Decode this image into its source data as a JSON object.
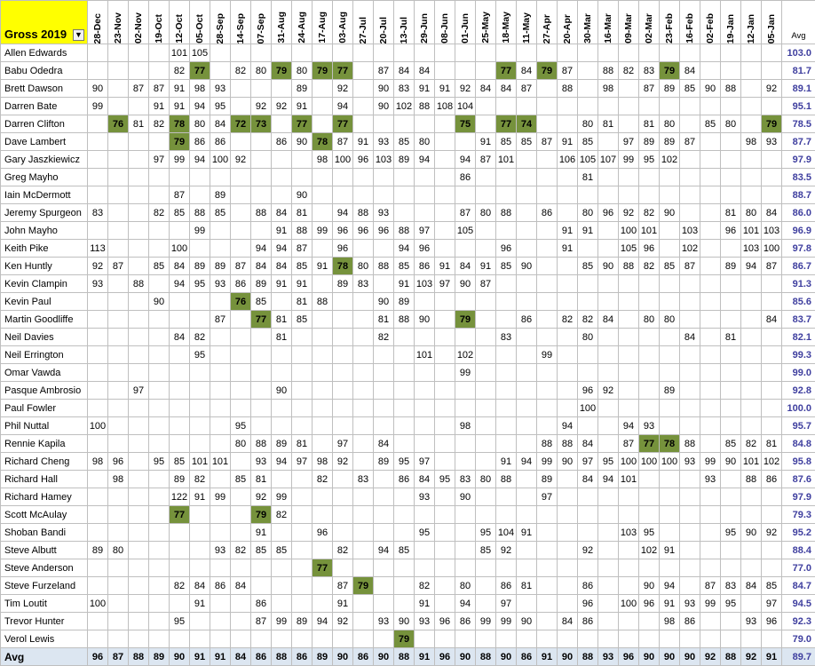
{
  "title": "Gross 2019",
  "filter_icon": "filter-icon",
  "avg_label": "Avg",
  "highlight_color": "#76923c",
  "dates": [
    "28-Dec",
    "23-Nov",
    "02-Nov",
    "19-Oct",
    "12-Oct",
    "05-Oct",
    "28-Sep",
    "14-Sep",
    "07-Sep",
    "31-Aug",
    "24-Aug",
    "17-Aug",
    "03-Aug",
    "27-Jul",
    "20-Jul",
    "13-Jul",
    "29-Jun",
    "08-Jun",
    "01-Jun",
    "25-May",
    "18-May",
    "11-May",
    "27-Apr",
    "20-Apr",
    "30-Mar",
    "16-Mar",
    "09-Mar",
    "02-Mar",
    "23-Feb",
    "16-Feb",
    "02-Feb",
    "19-Jan",
    "12-Jan",
    "05-Jan"
  ],
  "players": [
    {
      "name": "Allen Edwards",
      "avg": "103.0",
      "s": [
        "",
        "",
        "",
        "",
        "101",
        "105",
        "",
        "",
        "",
        "",
        "",
        "",
        "",
        "",
        "",
        "",
        "",
        "",
        "",
        "",
        "",
        "",
        "",
        "",
        "",
        "",
        "",
        "",
        "",
        "",
        "",
        "",
        "",
        ""
      ],
      "h": []
    },
    {
      "name": "Babu Odedra",
      "avg": "81.7",
      "s": [
        "",
        "",
        "",
        "",
        "82",
        "77",
        "",
        "82",
        "80",
        "79",
        "80",
        "79",
        "77",
        "",
        "87",
        "84",
        "84",
        "",
        "",
        "",
        "77",
        "84",
        "79",
        "87",
        "",
        "88",
        "82",
        "83",
        "79",
        "84",
        "",
        "",
        "",
        ""
      ],
      "h": [
        5,
        9,
        11,
        12,
        20,
        22,
        28
      ]
    },
    {
      "name": "Brett Dawson",
      "avg": "89.1",
      "s": [
        "90",
        "",
        "87",
        "87",
        "91",
        "98",
        "93",
        "",
        "",
        "",
        "89",
        "",
        "92",
        "",
        "90",
        "83",
        "91",
        "91",
        "92",
        "84",
        "84",
        "87",
        "",
        "88",
        "",
        "98",
        "",
        "87",
        "89",
        "85",
        "90",
        "88",
        "",
        "92"
      ],
      "h": []
    },
    {
      "name": "Darren Bate",
      "avg": "95.1",
      "s": [
        "99",
        "",
        "",
        "91",
        "91",
        "94",
        "95",
        "",
        "92",
        "92",
        "91",
        "",
        "94",
        "",
        "90",
        "102",
        "88",
        "108",
        "104",
        "",
        "",
        "",
        "",
        "",
        "",
        "",
        "",
        "",
        "",
        "",
        "",
        "",
        "",
        ""
      ],
      "h": []
    },
    {
      "name": "Darren Clifton",
      "avg": "78.5",
      "s": [
        "",
        "76",
        "81",
        "82",
        "78",
        "80",
        "84",
        "72",
        "73",
        "",
        "77",
        "",
        "77",
        "",
        "",
        "",
        "",
        "",
        "75",
        "",
        "77",
        "74",
        "",
        "",
        "80",
        "81",
        "",
        "81",
        "80",
        "",
        "85",
        "80",
        "",
        "79"
      ],
      "h": [
        1,
        4,
        7,
        8,
        10,
        12,
        18,
        20,
        21,
        33
      ]
    },
    {
      "name": "Dave Lambert",
      "avg": "87.7",
      "s": [
        "",
        "",
        "",
        "",
        "79",
        "86",
        "86",
        "",
        "",
        "86",
        "90",
        "78",
        "87",
        "91",
        "93",
        "85",
        "80",
        "",
        "",
        "91",
        "85",
        "85",
        "87",
        "91",
        "85",
        "",
        "97",
        "89",
        "89",
        "87",
        "",
        "",
        "98",
        "93"
      ],
      "h": [
        4,
        11
      ]
    },
    {
      "name": "Gary Jaszkiewicz",
      "avg": "97.9",
      "s": [
        "",
        "",
        "",
        "97",
        "99",
        "94",
        "100",
        "92",
        "",
        "",
        "",
        "98",
        "100",
        "96",
        "103",
        "89",
        "94",
        "",
        "94",
        "87",
        "101",
        "",
        "",
        "106",
        "105",
        "107",
        "99",
        "95",
        "102",
        "",
        "",
        "",
        "",
        ""
      ],
      "h": []
    },
    {
      "name": "Greg Mayho",
      "avg": "83.5",
      "s": [
        "",
        "",
        "",
        "",
        "",
        "",
        "",
        "",
        "",
        "",
        "",
        "",
        "",
        "",
        "",
        "",
        "",
        "",
        "86",
        "",
        "",
        "",
        "",
        "",
        "81",
        "",
        "",
        "",
        "",
        "",
        "",
        "",
        "",
        ""
      ],
      "h": []
    },
    {
      "name": "Iain McDermott",
      "avg": "88.7",
      "s": [
        "",
        "",
        "",
        "",
        "87",
        "",
        "89",
        "",
        "",
        "",
        "90",
        "",
        "",
        "",
        "",
        "",
        "",
        "",
        "",
        "",
        "",
        "",
        "",
        "",
        "",
        "",
        "",
        "",
        "",
        "",
        "",
        "",
        "",
        ""
      ],
      "h": []
    },
    {
      "name": "Jeremy Spurgeon",
      "avg": "86.0",
      "s": [
        "83",
        "",
        "",
        "82",
        "85",
        "88",
        "85",
        "",
        "88",
        "84",
        "81",
        "",
        "94",
        "88",
        "93",
        "",
        "",
        "",
        "87",
        "80",
        "88",
        "",
        "86",
        "",
        "80",
        "96",
        "92",
        "82",
        "90",
        "",
        "",
        "81",
        "80",
        "84"
      ],
      "h": []
    },
    {
      "name": "John Mayho",
      "avg": "96.9",
      "s": [
        "",
        "",
        "",
        "",
        "",
        "99",
        "",
        "",
        "",
        "91",
        "88",
        "99",
        "96",
        "96",
        "96",
        "88",
        "97",
        "",
        "105",
        "",
        "",
        "",
        "",
        "91",
        "91",
        "",
        "100",
        "101",
        "",
        "103",
        "",
        "96",
        "101",
        "103"
      ],
      "h": []
    },
    {
      "name": "Keith Pike",
      "avg": "97.8",
      "s": [
        "113",
        "",
        "",
        "",
        "100",
        "",
        "",
        "",
        "94",
        "94",
        "87",
        "",
        "96",
        "",
        "",
        "94",
        "96",
        "",
        "",
        "",
        "96",
        "",
        "",
        "91",
        "",
        "",
        "105",
        "96",
        "",
        "102",
        "",
        "",
        "103",
        "100"
      ],
      "h": []
    },
    {
      "name": "Ken Huntly",
      "avg": "86.7",
      "s": [
        "92",
        "87",
        "",
        "85",
        "84",
        "89",
        "89",
        "87",
        "84",
        "84",
        "85",
        "91",
        "78",
        "80",
        "88",
        "85",
        "86",
        "91",
        "84",
        "91",
        "85",
        "90",
        "",
        "",
        "85",
        "90",
        "88",
        "82",
        "85",
        "87",
        "",
        "89",
        "94",
        "87"
      ],
      "h": [
        12
      ]
    },
    {
      "name": "Kevin Clampin",
      "avg": "91.3",
      "s": [
        "93",
        "",
        "88",
        "",
        "94",
        "95",
        "93",
        "86",
        "89",
        "91",
        "91",
        "",
        "89",
        "83",
        "",
        "91",
        "103",
        "97",
        "90",
        "87",
        "",
        "",
        "",
        "",
        "",
        "",
        "",
        "",
        "",
        "",
        "",
        "",
        "",
        ""
      ],
      "h": []
    },
    {
      "name": "Kevin Paul",
      "avg": "85.6",
      "s": [
        "",
        "",
        "",
        "90",
        "",
        "",
        "",
        "76",
        "85",
        "",
        "81",
        "88",
        "",
        "",
        "90",
        "89",
        "",
        "",
        "",
        "",
        "",
        "",
        "",
        "",
        "",
        "",
        "",
        "",
        "",
        "",
        "",
        "",
        "",
        ""
      ],
      "h": [
        7
      ]
    },
    {
      "name": "Martin Goodliffe",
      "avg": "83.7",
      "s": [
        "",
        "",
        "",
        "",
        "",
        "",
        "87",
        "",
        "77",
        "81",
        "85",
        "",
        "",
        "",
        "81",
        "88",
        "90",
        "",
        "79",
        "",
        "",
        "86",
        "",
        "82",
        "82",
        "84",
        "",
        "80",
        "80",
        "",
        "",
        "",
        "",
        "84"
      ],
      "h": [
        8,
        18
      ]
    },
    {
      "name": "Neil Davies",
      "avg": "82.1",
      "s": [
        "",
        "",
        "",
        "",
        "84",
        "82",
        "",
        "",
        "",
        "81",
        "",
        "",
        "",
        "",
        "82",
        "",
        "",
        "",
        "",
        "",
        "83",
        "",
        "",
        "",
        "80",
        "",
        "",
        "",
        "",
        "84",
        "",
        "81",
        "",
        ""
      ],
      "h": []
    },
    {
      "name": "Neil Errington",
      "avg": "99.3",
      "s": [
        "",
        "",
        "",
        "",
        "",
        "95",
        "",
        "",
        "",
        "",
        "",
        "",
        "",
        "",
        "",
        "",
        "101",
        "",
        "102",
        "",
        "",
        "",
        "99",
        "",
        "",
        "",
        "",
        "",
        "",
        "",
        "",
        "",
        "",
        ""
      ],
      "h": []
    },
    {
      "name": "Omar Vawda",
      "avg": "99.0",
      "s": [
        "",
        "",
        "",
        "",
        "",
        "",
        "",
        "",
        "",
        "",
        "",
        "",
        "",
        "",
        "",
        "",
        "",
        "",
        "99",
        "",
        "",
        "",
        "",
        "",
        "",
        "",
        "",
        "",
        "",
        "",
        "",
        "",
        "",
        ""
      ],
      "h": []
    },
    {
      "name": "Pasque Ambrosio",
      "avg": "92.8",
      "s": [
        "",
        "",
        "97",
        "",
        "",
        "",
        "",
        "",
        "",
        "90",
        "",
        "",
        "",
        "",
        "",
        "",
        "",
        "",
        "",
        "",
        "",
        "",
        "",
        "",
        "96",
        "92",
        "",
        "",
        "89",
        "",
        "",
        "",
        "",
        ""
      ],
      "h": []
    },
    {
      "name": "Paul Fowler",
      "avg": "100.0",
      "s": [
        "",
        "",
        "",
        "",
        "",
        "",
        "",
        "",
        "",
        "",
        "",
        "",
        "",
        "",
        "",
        "",
        "",
        "",
        "",
        "",
        "",
        "",
        "",
        "",
        "100",
        "",
        "",
        "",
        "",
        "",
        "",
        "",
        "",
        ""
      ],
      "h": []
    },
    {
      "name": "Phil Nuttal",
      "avg": "95.7",
      "s": [
        "100",
        "",
        "",
        "",
        "",
        "",
        "",
        "95",
        "",
        "",
        "",
        "",
        "",
        "",
        "",
        "",
        "",
        "",
        "98",
        "",
        "",
        "",
        "",
        "94",
        "",
        "",
        "94",
        "93",
        "",
        "",
        "",
        "",
        "",
        ""
      ],
      "h": []
    },
    {
      "name": "Rennie Kapila",
      "avg": "84.8",
      "s": [
        "",
        "",
        "",
        "",
        "",
        "",
        "",
        "80",
        "88",
        "89",
        "81",
        "",
        "97",
        "",
        "84",
        "",
        "",
        "",
        "",
        "",
        "",
        "",
        "88",
        "88",
        "84",
        "",
        "87",
        "77",
        "78",
        "88",
        "",
        "85",
        "82",
        "81"
      ],
      "h": [
        27,
        28
      ]
    },
    {
      "name": "Richard Cheng",
      "avg": "95.8",
      "s": [
        "98",
        "96",
        "",
        "95",
        "85",
        "101",
        "101",
        "",
        "93",
        "94",
        "97",
        "98",
        "92",
        "",
        "89",
        "95",
        "97",
        "",
        "",
        "",
        "91",
        "94",
        "99",
        "90",
        "97",
        "95",
        "100",
        "100",
        "100",
        "93",
        "99",
        "90",
        "101",
        "102"
      ],
      "h": []
    },
    {
      "name": "Richard Hall",
      "avg": "87.6",
      "s": [
        "",
        "98",
        "",
        "",
        "89",
        "82",
        "",
        "85",
        "81",
        "",
        "",
        "82",
        "",
        "83",
        "",
        "86",
        "84",
        "95",
        "83",
        "80",
        "88",
        "",
        "89",
        "",
        "84",
        "94",
        "101",
        "",
        "",
        "",
        "93",
        "",
        "88",
        "86"
      ],
      "h": []
    },
    {
      "name": "Richard Hamey",
      "avg": "97.9",
      "s": [
        "",
        "",
        "",
        "",
        "122",
        "91",
        "99",
        "",
        "92",
        "99",
        "",
        "",
        "",
        "",
        "",
        "",
        "93",
        "",
        "90",
        "",
        "",
        "",
        "97",
        "",
        "",
        "",
        "",
        "",
        "",
        "",
        "",
        "",
        "",
        ""
      ],
      "h": []
    },
    {
      "name": "Scott McAulay",
      "avg": "79.3",
      "s": [
        "",
        "",
        "",
        "",
        "77",
        "",
        "",
        "",
        "79",
        "82",
        "",
        "",
        "",
        "",
        "",
        "",
        "",
        "",
        "",
        "",
        "",
        "",
        "",
        "",
        "",
        "",
        "",
        "",
        "",
        "",
        "",
        "",
        "",
        ""
      ],
      "h": [
        4,
        8
      ]
    },
    {
      "name": "Shoban Bandi",
      "avg": "95.2",
      "s": [
        "",
        "",
        "",
        "",
        "",
        "",
        "",
        "",
        "91",
        "",
        "",
        "96",
        "",
        "",
        "",
        "",
        "95",
        "",
        "",
        "95",
        "104",
        "91",
        "",
        "",
        "",
        "",
        "103",
        "95",
        "",
        "",
        "",
        "95",
        "90",
        "92"
      ],
      "h": []
    },
    {
      "name": "Steve Albutt",
      "avg": "88.4",
      "s": [
        "89",
        "80",
        "",
        "",
        "",
        "",
        "93",
        "82",
        "85",
        "85",
        "",
        "",
        "82",
        "",
        "94",
        "85",
        "",
        "",
        "",
        "85",
        "92",
        "",
        "",
        "",
        "92",
        "",
        "",
        "102",
        "91",
        "",
        "",
        "",
        "",
        ""
      ],
      "h": []
    },
    {
      "name": "Steve Anderson",
      "avg": "77.0",
      "s": [
        "",
        "",
        "",
        "",
        "",
        "",
        "",
        "",
        "",
        "",
        "",
        "77",
        "",
        "",
        "",
        "",
        "",
        "",
        "",
        "",
        "",
        "",
        "",
        "",
        "",
        "",
        "",
        "",
        "",
        "",
        "",
        "",
        "",
        ""
      ],
      "h": [
        11
      ]
    },
    {
      "name": "Steve Furzeland",
      "avg": "84.7",
      "s": [
        "",
        "",
        "",
        "",
        "82",
        "84",
        "86",
        "84",
        "",
        "",
        "",
        "",
        "87",
        "79",
        "",
        "",
        "82",
        "",
        "80",
        "",
        "86",
        "81",
        "",
        "",
        "86",
        "",
        "",
        "90",
        "94",
        "",
        "87",
        "83",
        "84",
        "85"
      ],
      "h": [
        13
      ]
    },
    {
      "name": "Tim Loutit",
      "avg": "94.5",
      "s": [
        "100",
        "",
        "",
        "",
        "",
        "91",
        "",
        "",
        "86",
        "",
        "",
        "",
        "91",
        "",
        "",
        "",
        "91",
        "",
        "94",
        "",
        "97",
        "",
        "",
        "",
        "96",
        "",
        "100",
        "96",
        "91",
        "93",
        "99",
        "95",
        "",
        "97"
      ],
      "h": []
    },
    {
      "name": "Trevor Hunter",
      "avg": "92.3",
      "s": [
        "",
        "",
        "",
        "",
        "95",
        "",
        "",
        "",
        "87",
        "99",
        "89",
        "94",
        "92",
        "",
        "93",
        "90",
        "93",
        "96",
        "86",
        "99",
        "99",
        "90",
        "",
        "84",
        "86",
        "",
        "",
        "",
        "98",
        "86",
        "",
        "",
        "93",
        "96"
      ],
      "h": []
    },
    {
      "name": "Verol Lewis",
      "avg": "79.0",
      "s": [
        "",
        "",
        "",
        "",
        "",
        "",
        "",
        "",
        "",
        "",
        "",
        "",
        "",
        "",
        "",
        "79",
        "",
        "",
        "",
        "",
        "",
        "",
        "",
        "",
        "",
        "",
        "",
        "",
        "",
        "",
        "",
        "",
        "",
        ""
      ],
      "h": [
        15
      ]
    }
  ],
  "footer": {
    "label": "Avg",
    "values": [
      "96",
      "87",
      "88",
      "89",
      "90",
      "91",
      "91",
      "84",
      "86",
      "88",
      "86",
      "89",
      "90",
      "86",
      "90",
      "88",
      "91",
      "96",
      "90",
      "88",
      "90",
      "86",
      "91",
      "90",
      "88",
      "93",
      "96",
      "90",
      "90",
      "90",
      "92",
      "88",
      "92",
      "91"
    ],
    "avg": "89.7"
  }
}
